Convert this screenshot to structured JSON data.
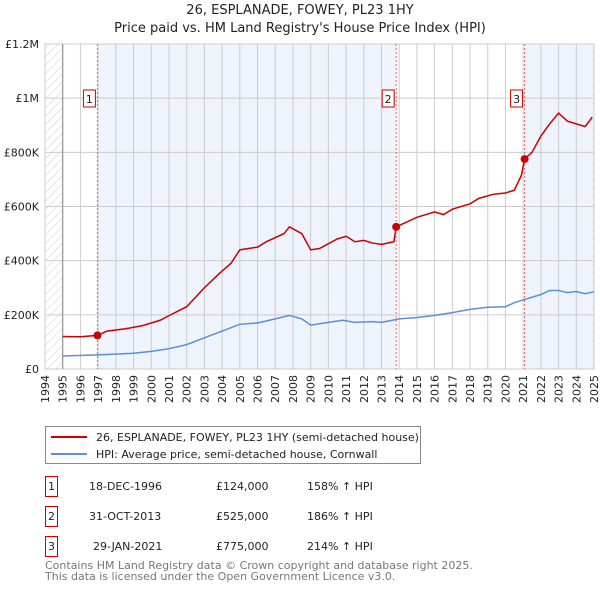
{
  "title": "26, ESPLANADE, FOWEY, PL23 1HY",
  "subtitle": "Price paid vs. HM Land Registry's House Price Index (HPI)",
  "legend": {
    "property": "26, ESPLANADE, FOWEY, PL23 1HY (semi-detached house)",
    "hpi": "HPI: Average price, semi-detached house, Cornwall"
  },
  "colors": {
    "property": "#cc0000",
    "hpi": "#5b8fd6",
    "shade": "#eef3fc"
  },
  "sales": [
    {
      "id": "1",
      "date": "18-DEC-1996",
      "price": "£124,000",
      "hpi": "158% ↑ HPI",
      "x": 1996.96,
      "y": 124
    },
    {
      "id": "2",
      "date": "31-OCT-2013",
      "price": "£525,000",
      "hpi": "186% ↑ HPI",
      "x": 2013.83,
      "y": 525
    },
    {
      "id": "3",
      "date": "29-JAN-2021",
      "price": "£775,000",
      "hpi": "214% ↑ HPI",
      "x": 2021.08,
      "y": 775
    }
  ],
  "footer": [
    "Contains HM Land Registry data © Crown copyright and database right 2025.",
    "This data is licensed under the Open Government Licence v3.0."
  ],
  "chart_data": {
    "type": "line",
    "title": "26, ESPLANADE, FOWEY, PL23 1HY — Price paid vs. HM Land Registry's House Price Index (HPI)",
    "xlim": [
      1994,
      2025
    ],
    "ylim": [
      0,
      1200
    ],
    "yticks": [
      {
        "v": 0,
        "label": "£0"
      },
      {
        "v": 200,
        "label": "£200K"
      },
      {
        "v": 400,
        "label": "£400K"
      },
      {
        "v": 600,
        "label": "£600K"
      },
      {
        "v": 800,
        "label": "£800K"
      },
      {
        "v": 1000,
        "label": "£1M"
      },
      {
        "v": 1200,
        "label": "£1.2M"
      }
    ],
    "xticks": [
      1994,
      1995,
      1996,
      1997,
      1998,
      1999,
      2000,
      2001,
      2002,
      2003,
      2004,
      2005,
      2006,
      2007,
      2008,
      2009,
      2010,
      2011,
      2012,
      2013,
      2014,
      2015,
      2016,
      2017,
      2018,
      2019,
      2020,
      2021,
      2022,
      2023,
      2024,
      2025
    ],
    "grid": true,
    "legend_position": "bottom",
    "series": [
      {
        "name": "26, ESPLANADE, FOWEY, PL23 1HY (semi-detached house)",
        "unit": "£K",
        "points": [
          [
            1995,
            120
          ],
          [
            1996,
            119
          ],
          [
            1996.96,
            124
          ],
          [
            1997.5,
            140
          ],
          [
            1998.5,
            148
          ],
          [
            1999.5,
            160
          ],
          [
            2000.5,
            180
          ],
          [
            2001,
            197
          ],
          [
            2002,
            230
          ],
          [
            2003,
            300
          ],
          [
            2003.8,
            350
          ],
          [
            2004.5,
            390
          ],
          [
            2005,
            440
          ],
          [
            2006,
            450
          ],
          [
            2006.5,
            470
          ],
          [
            2007.5,
            500
          ],
          [
            2007.8,
            525
          ],
          [
            2008.5,
            500
          ],
          [
            2009,
            440
          ],
          [
            2009.5,
            445
          ],
          [
            2010.5,
            480
          ],
          [
            2011,
            490
          ],
          [
            2011.5,
            470
          ],
          [
            2012,
            475
          ],
          [
            2012.5,
            465
          ],
          [
            2013,
            460
          ],
          [
            2013.7,
            470
          ],
          [
            2013.83,
            525
          ],
          [
            2014.5,
            545
          ],
          [
            2015,
            560
          ],
          [
            2016,
            580
          ],
          [
            2016.5,
            570
          ],
          [
            2017,
            590
          ],
          [
            2018,
            610
          ],
          [
            2018.5,
            630
          ],
          [
            2019.3,
            645
          ],
          [
            2020,
            650
          ],
          [
            2020.5,
            660
          ],
          [
            2020.9,
            715
          ],
          [
            2021.08,
            775
          ],
          [
            2021.5,
            800
          ],
          [
            2022,
            860
          ],
          [
            2022.5,
            905
          ],
          [
            2023,
            945
          ],
          [
            2023.5,
            915
          ],
          [
            2024,
            905
          ],
          [
            2024.5,
            895
          ],
          [
            2024.9,
            930
          ]
        ]
      },
      {
        "name": "HPI: Average price, semi-detached house, Cornwall",
        "unit": "£K",
        "points": [
          [
            1995,
            48
          ],
          [
            1997,
            52
          ],
          [
            1998,
            55
          ],
          [
            1999,
            58
          ],
          [
            2000,
            65
          ],
          [
            2001,
            75
          ],
          [
            2002,
            90
          ],
          [
            2003,
            115
          ],
          [
            2004,
            140
          ],
          [
            2005,
            165
          ],
          [
            2006,
            170
          ],
          [
            2007,
            185
          ],
          [
            2007.8,
            198
          ],
          [
            2008.5,
            185
          ],
          [
            2009,
            162
          ],
          [
            2010,
            172
          ],
          [
            2010.8,
            180
          ],
          [
            2011.5,
            172
          ],
          [
            2012.5,
            175
          ],
          [
            2013,
            172
          ],
          [
            2014,
            185
          ],
          [
            2015,
            190
          ],
          [
            2016,
            198
          ],
          [
            2017,
            208
          ],
          [
            2018,
            220
          ],
          [
            2019,
            228
          ],
          [
            2020,
            230
          ],
          [
            2020.5,
            245
          ],
          [
            2021,
            255
          ],
          [
            2022,
            275
          ],
          [
            2022.5,
            290
          ],
          [
            2023,
            290
          ],
          [
            2023.5,
            282
          ],
          [
            2024,
            286
          ],
          [
            2024.5,
            278
          ],
          [
            2025,
            285
          ]
        ]
      }
    ]
  }
}
